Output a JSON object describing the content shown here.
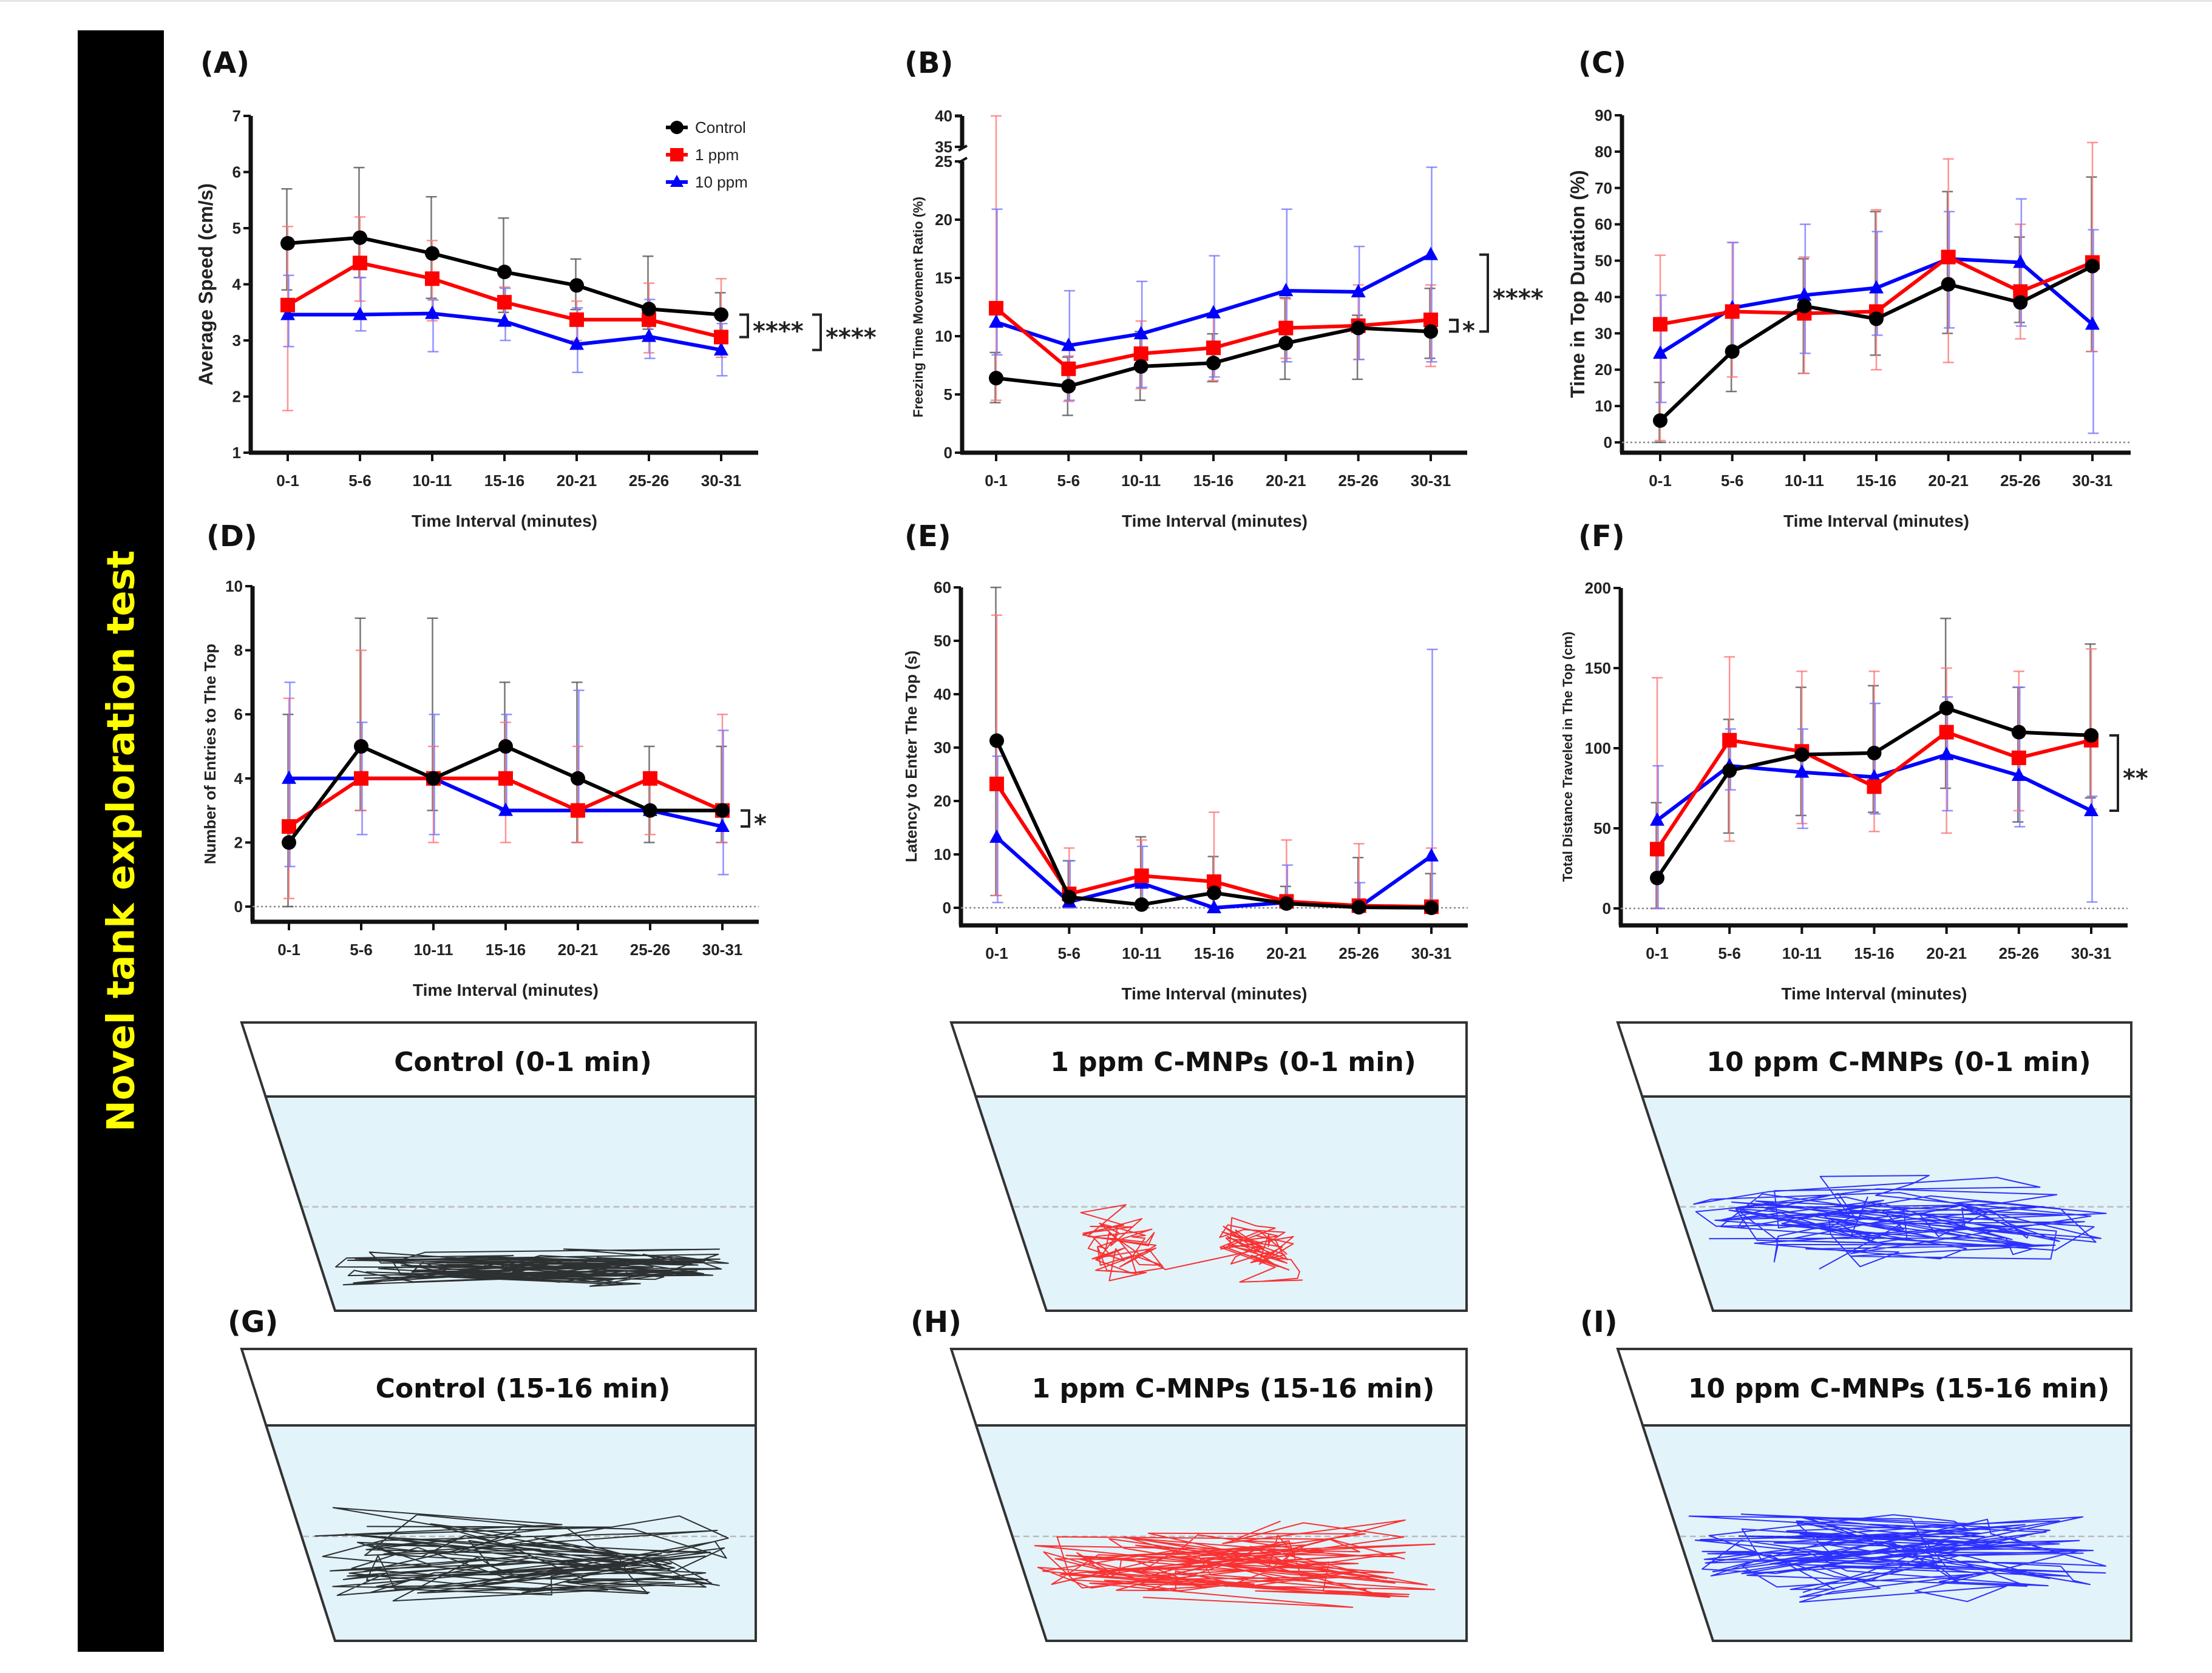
{
  "sidebar": {
    "title": "Novel tank exploration test"
  },
  "colors": {
    "control": "#000000",
    "ppm1": "#ff0000",
    "ppm10": "#0000ff",
    "control_err": "#555555",
    "ppm1_err": "#ff7777",
    "ppm10_err": "#7777ff",
    "water": "#e2f3fa"
  },
  "legend": [
    {
      "name": "Control",
      "marker": "circle"
    },
    {
      "name": "1 ppm",
      "marker": "square"
    },
    {
      "name": "10 ppm",
      "marker": "triangle"
    }
  ],
  "chart_data": [
    {
      "id": "A",
      "type": "line",
      "panel_label": "(A)",
      "xlabel": "Time Interval (minutes)",
      "ylabel": "Average Speed (cm/s)",
      "categories": [
        "0-1",
        "5-6",
        "10-11",
        "15-16",
        "20-21",
        "25-26",
        "30-31"
      ],
      "ylim": [
        1,
        7
      ],
      "yticks": [
        1,
        2,
        3,
        4,
        5,
        6,
        7
      ],
      "zero_line": false,
      "legend_position": "top-right",
      "series": [
        {
          "name": "Control",
          "values": [
            4.73,
            4.83,
            4.55,
            4.22,
            3.98,
            3.56,
            3.46
          ],
          "err_upper": [
            5.7,
            6.08,
            5.56,
            5.18,
            4.45,
            4.5,
            3.85
          ],
          "err_lower": [
            3.9,
            4.12,
            3.75,
            3.5,
            3.55,
            3.2,
            3.0
          ]
        },
        {
          "name": "1 ppm",
          "values": [
            3.63,
            4.38,
            4.1,
            3.68,
            3.37,
            3.37,
            3.06
          ],
          "err_upper": [
            5.03,
            5.2,
            4.78,
            3.95,
            3.7,
            4.02,
            4.1
          ],
          "err_lower": [
            1.75,
            3.7,
            3.35,
            3.3,
            3.0,
            2.78,
            2.7
          ]
        },
        {
          "name": "10 ppm",
          "values": [
            3.46,
            3.46,
            3.48,
            3.34,
            2.93,
            3.07,
            2.83
          ],
          "err_upper": [
            4.16,
            4.12,
            3.72,
            3.93,
            3.58,
            3.73,
            3.3
          ],
          "err_lower": [
            2.89,
            3.17,
            2.8,
            3.0,
            2.43,
            2.68,
            2.37
          ]
        }
      ],
      "significance": [
        {
          "label": "****",
          "from_value": 3.46,
          "to_value": 3.06
        },
        {
          "label": "****",
          "from_value": 3.46,
          "to_value": 2.83
        }
      ]
    },
    {
      "id": "B",
      "type": "line",
      "panel_label": "(B)",
      "xlabel": "Time Interval (minutes)",
      "ylabel": "Freezing Time Movement Ratio (%)",
      "categories": [
        "0-1",
        "5-6",
        "10-11",
        "15-16",
        "20-21",
        "25-26",
        "30-31"
      ],
      "ylim": [
        0,
        40
      ],
      "axis_break": [
        25,
        35
      ],
      "yticks": [
        0,
        5,
        10,
        15,
        20,
        25,
        35,
        40
      ],
      "zero_line": false,
      "series": [
        {
          "name": "Control",
          "values": [
            6.4,
            5.7,
            7.4,
            7.7,
            9.4,
            10.7,
            10.4
          ],
          "err_upper": [
            8.6,
            8.2,
            10.4,
            10.2,
            13.3,
            11.8,
            14.1
          ],
          "err_lower": [
            4.3,
            3.2,
            4.5,
            6.1,
            6.3,
            6.3,
            8.1
          ]
        },
        {
          "name": "1 ppm",
          "values": [
            12.4,
            7.2,
            8.5,
            9.0,
            10.7,
            10.9,
            11.4
          ],
          "err_upper": [
            40,
            8.3,
            11.3,
            11.6,
            13.2,
            14.4,
            14.4
          ],
          "err_lower": [
            4.5,
            4.4,
            5.5,
            6.2,
            8.1,
            8.0,
            7.4
          ]
        },
        {
          "name": "10 ppm",
          "values": [
            11.2,
            9.2,
            10.2,
            12.0,
            13.9,
            13.8,
            17.0
          ],
          "err_upper": [
            20.9,
            13.9,
            14.7,
            16.9,
            20.9,
            17.7,
            24.5
          ],
          "err_lower": [
            8.4,
            4.5,
            5.6,
            6.5,
            7.8,
            8.0,
            7.8
          ]
        }
      ],
      "significance": [
        {
          "label": "*",
          "from_value": 11.4,
          "to_value": 10.4
        },
        {
          "label": "****",
          "from_value": 17.0,
          "to_value": 10.4
        }
      ]
    },
    {
      "id": "C",
      "type": "line",
      "panel_label": "(C)",
      "xlabel": "Time Interval (minutes)",
      "ylabel": "Time in Top Duration (%)",
      "categories": [
        "0-1",
        "5-6",
        "10-11",
        "15-16",
        "20-21",
        "25-26",
        "30-31"
      ],
      "ylim": [
        -3,
        90
      ],
      "yticks": [
        0,
        10,
        20,
        30,
        40,
        50,
        60,
        70,
        80,
        90
      ],
      "zero_line": true,
      "series": [
        {
          "name": "Control",
          "values": [
            6,
            25,
            37.5,
            34,
            43.5,
            38.5,
            48.5
          ],
          "err_upper": [
            16.5,
            36,
            50.5,
            63.5,
            69,
            56.5,
            73
          ],
          "err_lower": [
            0,
            14,
            19,
            24,
            30,
            33,
            25
          ]
        },
        {
          "name": "1 ppm",
          "values": [
            32.5,
            36,
            35.5,
            36,
            51,
            41.5,
            49.5
          ],
          "err_upper": [
            51.5,
            55,
            51,
            64,
            78,
            60,
            82.5
          ],
          "err_lower": [
            0.5,
            18,
            19,
            20,
            22,
            28.5,
            25
          ]
        },
        {
          "name": "10 ppm",
          "values": [
            24.5,
            37,
            40.5,
            42.5,
            50.5,
            49.5,
            32.5
          ],
          "err_upper": [
            40.5,
            55,
            60,
            58,
            63.5,
            67,
            58.5
          ],
          "err_lower": [
            11,
            24,
            24.5,
            29.5,
            31.5,
            32,
            2.5
          ]
        }
      ],
      "significance": []
    },
    {
      "id": "D",
      "type": "line",
      "panel_label": "(D)",
      "xlabel": "Time Interval (minutes)",
      "ylabel": "Number of Entries to The Top",
      "categories": [
        "0-1",
        "5-6",
        "10-11",
        "15-16",
        "20-21",
        "25-26",
        "30-31"
      ],
      "ylim": [
        -0.45,
        10
      ],
      "yticks": [
        0,
        2,
        4,
        6,
        8,
        10
      ],
      "zero_line": true,
      "series": [
        {
          "name": "Control",
          "values": [
            2,
            5,
            4,
            5,
            4,
            3,
            3
          ],
          "err_upper": [
            6,
            9,
            9,
            7,
            7,
            5,
            5
          ],
          "err_lower": [
            0,
            3,
            3,
            3,
            2,
            2,
            2
          ]
        },
        {
          "name": "1 ppm",
          "values": [
            2.5,
            4,
            4,
            4,
            3,
            4,
            3
          ],
          "err_upper": [
            6.5,
            8,
            5,
            5.75,
            5,
            4,
            6
          ],
          "err_lower": [
            0.25,
            3,
            2,
            2,
            2,
            2.25,
            2
          ]
        },
        {
          "name": "10 ppm",
          "values": [
            4,
            4,
            4,
            3,
            3,
            3,
            2.5
          ],
          "err_upper": [
            7,
            5.75,
            6,
            6,
            6.75,
            3,
            5.5
          ],
          "err_lower": [
            1.25,
            2.25,
            2.25,
            3,
            3,
            3,
            1
          ]
        }
      ],
      "significance": [
        {
          "label": "*",
          "from_value": 3,
          "to_value": 2.5
        }
      ]
    },
    {
      "id": "E",
      "type": "line",
      "panel_label": "(E)",
      "xlabel": "Time Interval (minutes)",
      "ylabel": "Latency to Enter The Top (s)",
      "categories": [
        "0-1",
        "5-6",
        "10-11",
        "15-16",
        "20-21",
        "25-26",
        "30-31"
      ],
      "ylim": [
        -3.5,
        60
      ],
      "yticks": [
        0,
        10,
        20,
        30,
        40,
        50,
        60
      ],
      "zero_line": true,
      "series": [
        {
          "name": "Control",
          "values": [
            31.3,
            2.0,
            0.6,
            2.8,
            0.8,
            0.1,
            0.0
          ],
          "err_upper": [
            60,
            8.8,
            13.3,
            9.6,
            4.0,
            9.4,
            6.4
          ],
          "err_lower": [
            2.3,
            0,
            0,
            0,
            0,
            0,
            0
          ]
        },
        {
          "name": "1 ppm",
          "values": [
            23.2,
            2.6,
            6.0,
            4.9,
            1.2,
            0.4,
            0.2
          ],
          "err_upper": [
            54.8,
            11.2,
            12.7,
            17.9,
            12.7,
            12.0,
            11.2
          ],
          "err_lower": [
            2.3,
            0,
            0,
            0,
            0,
            0,
            0
          ]
        },
        {
          "name": "10 ppm",
          "values": [
            13.2,
            1.1,
            4.6,
            0.0,
            1.0,
            0.1,
            9.7
          ],
          "err_upper": [
            28.4,
            8.8,
            11.5,
            0,
            8.0,
            4.7,
            48.4
          ],
          "err_lower": [
            1.0,
            0,
            0,
            0,
            0,
            0,
            0
          ]
        }
      ],
      "significance": []
    },
    {
      "id": "F",
      "type": "line",
      "panel_label": "(F)",
      "xlabel": "Time Interval (minutes)",
      "ylabel": "Total Distance Traveled in The Top (cm)",
      "categories": [
        "0-1",
        "5-6",
        "10-11",
        "15-16",
        "20-21",
        "25-26",
        "30-31"
      ],
      "ylim": [
        -11,
        200
      ],
      "yticks": [
        0,
        50,
        100,
        150,
        200
      ],
      "zero_line": true,
      "series": [
        {
          "name": "Control",
          "values": [
            19,
            86,
            96,
            97,
            125,
            110,
            108
          ],
          "err_upper": [
            66,
            118,
            138,
            139,
            181,
            138,
            165
          ],
          "err_lower": [
            0,
            47,
            58,
            60,
            75,
            54,
            69
          ]
        },
        {
          "name": "1 ppm",
          "values": [
            37,
            105,
            98,
            76,
            110,
            94,
            105
          ],
          "err_upper": [
            144,
            157,
            148,
            148,
            150,
            148,
            162
          ],
          "err_lower": [
            0,
            42,
            53,
            48,
            47,
            61,
            62
          ]
        },
        {
          "name": "10 ppm",
          "values": [
            55,
            89,
            85,
            82,
            96,
            83,
            61
          ],
          "err_upper": [
            89,
            112,
            112,
            128,
            132,
            138,
            70
          ],
          "err_lower": [
            0,
            74,
            50,
            59,
            61,
            51,
            4
          ]
        }
      ],
      "significance": [
        {
          "label": "**",
          "from_value": 108,
          "to_value": 61
        }
      ]
    }
  ],
  "tanks": [
    {
      "id": "tank-control-0-1",
      "title": "Control (0-1 min)",
      "group": "control",
      "panel_label": ""
    },
    {
      "id": "tank-1ppm-0-1",
      "title": "1 ppm C-MNPs (0-1 min)",
      "group": "ppm1",
      "panel_label": ""
    },
    {
      "id": "tank-10ppm-0-1",
      "title": "10 ppm C-MNPs (0-1 min)",
      "group": "ppm10",
      "panel_label": ""
    },
    {
      "id": "tank-control-15-16",
      "title": "Control (15-16 min)",
      "group": "control",
      "panel_label": "(G)"
    },
    {
      "id": "tank-1ppm-15-16",
      "title": "1 ppm C-MNPs (15-16 min)",
      "group": "ppm1",
      "panel_label": "(H)"
    },
    {
      "id": "tank-10ppm-15-16",
      "title": "10 ppm C-MNPs (15-16 min)",
      "group": "ppm10",
      "panel_label": "(I)"
    }
  ]
}
